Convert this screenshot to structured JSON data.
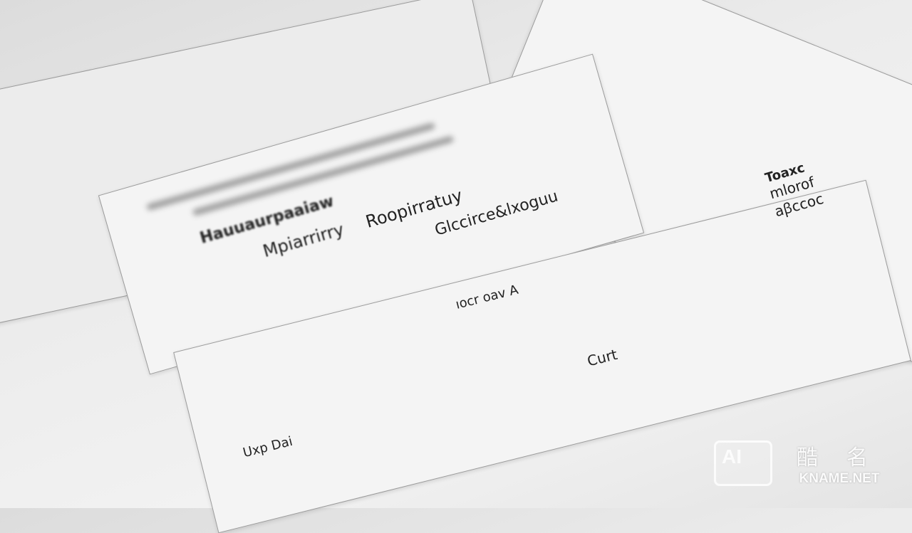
{
  "scene": {
    "description_labels": {
      "line1": "Hauuaurpaaiaw",
      "line2": "Mpiarrirry",
      "line3": "Roopirratuy",
      "line4": "Glccirce&lxoguu",
      "line5": "ıocr oav A",
      "line6": "Uxp Dai",
      "line7": "Curt",
      "line8": "Toaxc",
      "line9": "mlorof",
      "line10": "aꞵccoc"
    }
  },
  "watermark": {
    "logo_text": "AI",
    "chinese": "酷名",
    "site": "KNAME.NET"
  },
  "colors": {
    "paper": "#f4f4f4",
    "ink": "#222222",
    "background": "#e6e6e6"
  }
}
